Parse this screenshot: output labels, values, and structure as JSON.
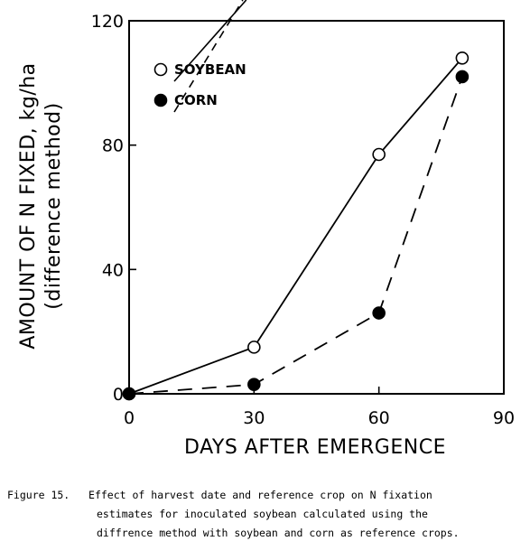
{
  "chart_data": {
    "type": "line",
    "xlabel": "DAYS AFTER EMERGENCE",
    "ylabel": "AMOUNT OF N FIXED, kg/ha",
    "ylabel_sub": "(difference method)",
    "xlim": [
      0,
      90
    ],
    "ylim": [
      0,
      120
    ],
    "xticks": [
      0,
      30,
      60,
      90
    ],
    "yticks": [
      0,
      40,
      80,
      120
    ],
    "grid": false,
    "legend_position": "top-left",
    "series": [
      {
        "name": "SOYBEAN",
        "marker": "open-circle",
        "line": "solid",
        "x": [
          0,
          30,
          60,
          80
        ],
        "y": [
          0,
          15,
          77,
          108
        ]
      },
      {
        "name": "CORN",
        "marker": "filled-circle",
        "line": "dashed",
        "x": [
          0,
          30,
          60,
          80
        ],
        "y": [
          0,
          3,
          26,
          102
        ]
      }
    ]
  },
  "caption": {
    "label": "Figure 15.",
    "line1": "Effect of harvest date and reference crop on N fixation",
    "line2": "estimates for inoculated soybean calculated using the",
    "line3": "diffrence method with soybean and corn as reference crops."
  },
  "colors": {
    "ink": "#000000",
    "background": "#ffffff"
  }
}
